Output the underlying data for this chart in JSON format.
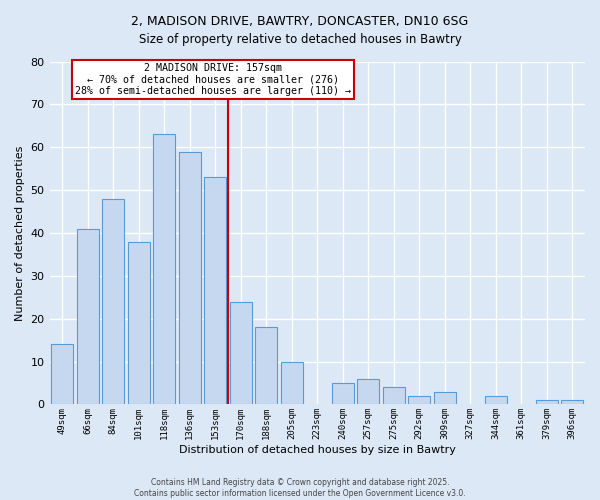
{
  "title_line1": "2, MADISON DRIVE, BAWTRY, DONCASTER, DN10 6SG",
  "title_line2": "Size of property relative to detached houses in Bawtry",
  "xlabel": "Distribution of detached houses by size in Bawtry",
  "ylabel": "Number of detached properties",
  "bar_labels": [
    "49sqm",
    "66sqm",
    "84sqm",
    "101sqm",
    "118sqm",
    "136sqm",
    "153sqm",
    "170sqm",
    "188sqm",
    "205sqm",
    "223sqm",
    "240sqm",
    "257sqm",
    "275sqm",
    "292sqm",
    "309sqm",
    "327sqm",
    "344sqm",
    "361sqm",
    "379sqm",
    "396sqm"
  ],
  "bar_values": [
    14,
    41,
    48,
    38,
    63,
    59,
    53,
    24,
    18,
    10,
    0,
    5,
    6,
    4,
    2,
    3,
    0,
    2,
    0,
    1,
    1
  ],
  "bar_color": "#c5d8f0",
  "bar_edge_color": "#5b9bd5",
  "vline_x_index": 7,
  "vline_color": "#cc0000",
  "annotation_title": "2 MADISON DRIVE: 157sqm",
  "annotation_line1": "← 70% of detached houses are smaller (276)",
  "annotation_line2": "28% of semi-detached houses are larger (110) →",
  "annotation_box_edge": "#cc0000",
  "ylim": [
    0,
    80
  ],
  "yticks": [
    0,
    10,
    20,
    30,
    40,
    50,
    60,
    70,
    80
  ],
  "background_color": "#dce8f5",
  "grid_color": "#ffffff",
  "footer_line1": "Contains HM Land Registry data © Crown copyright and database right 2025.",
  "footer_line2": "Contains public sector information licensed under the Open Government Licence v3.0."
}
